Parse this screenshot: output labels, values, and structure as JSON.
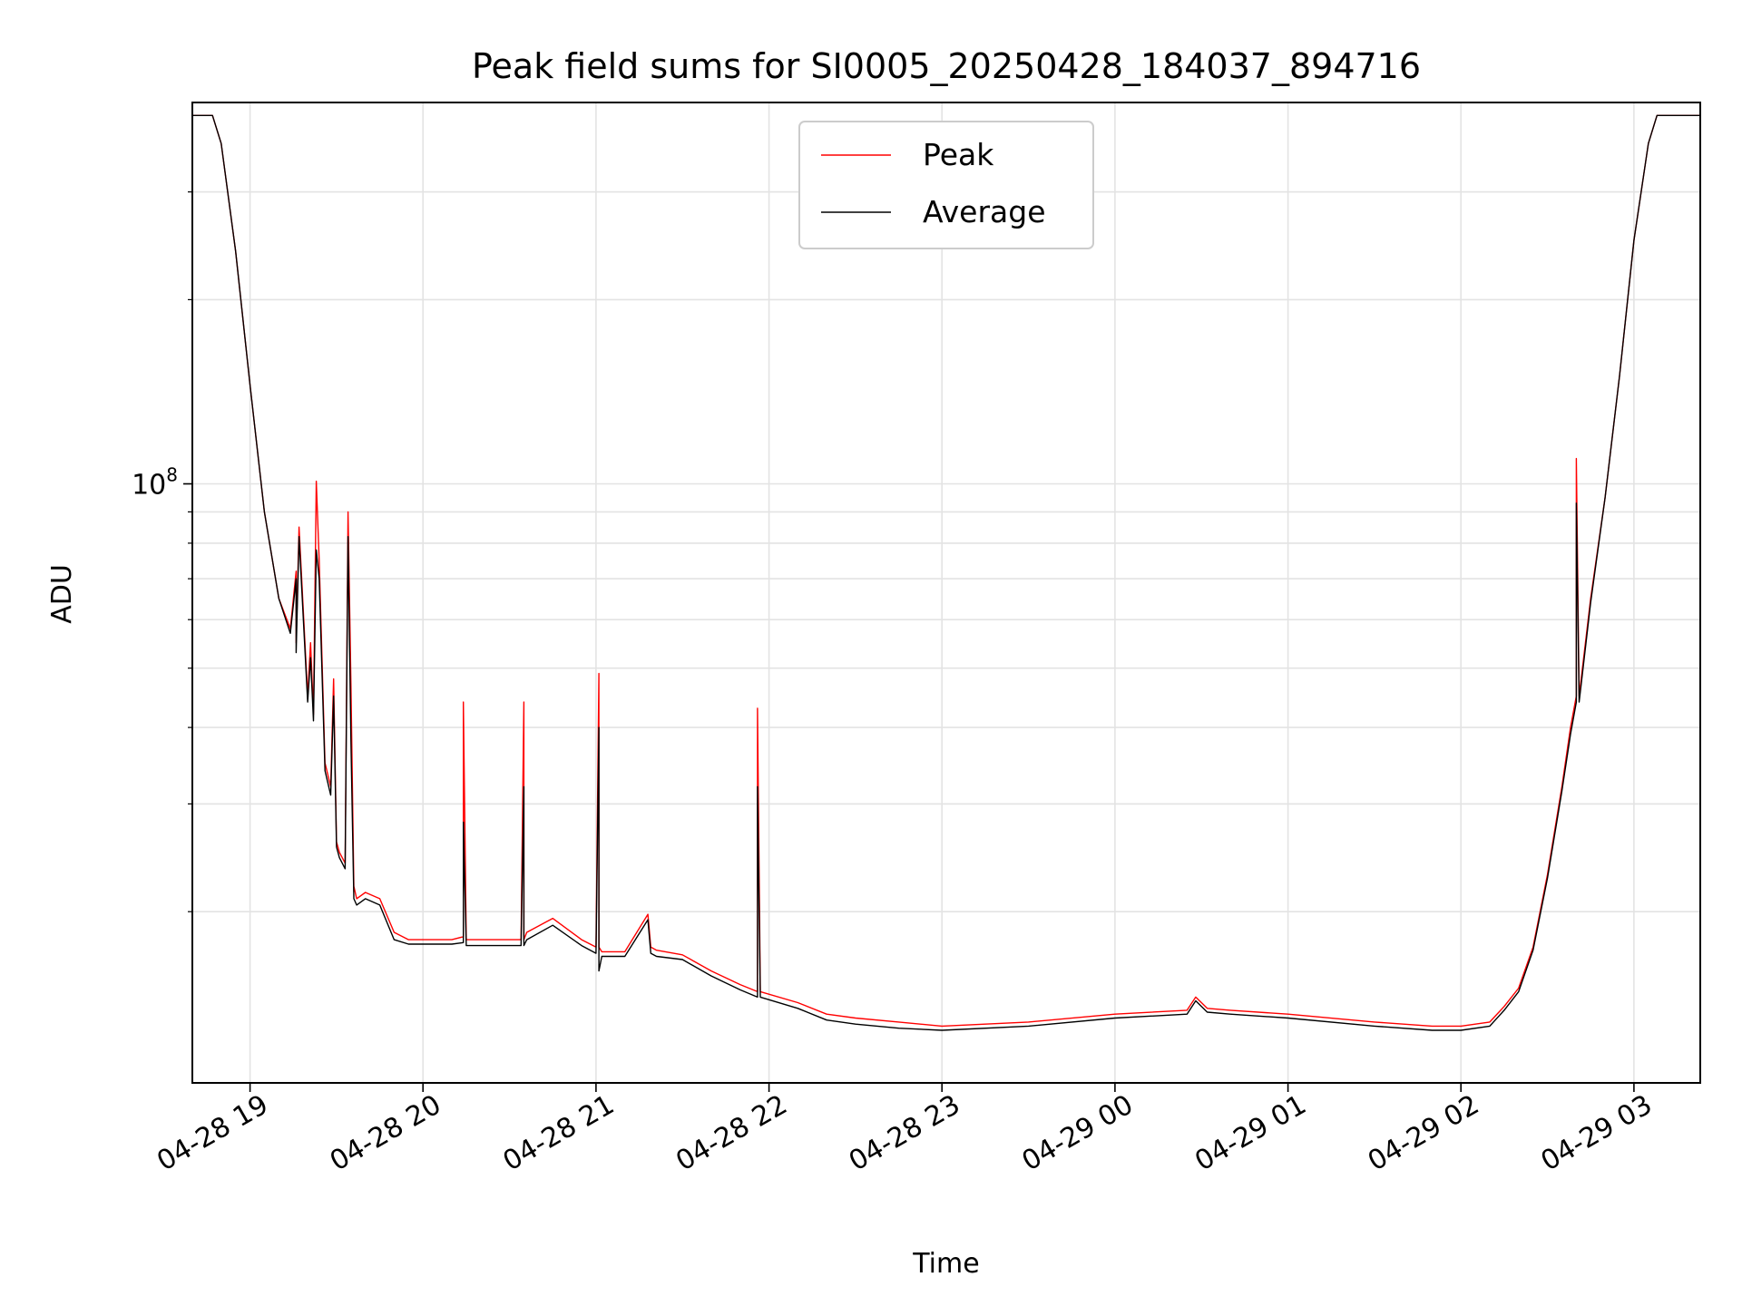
{
  "chart_data": {
    "type": "line",
    "title": "Peak field sums for SI0005_20250428_184037_894716",
    "xlabel": "Time",
    "ylabel": "ADU",
    "y_scale": "log",
    "ylim": [
      10500000,
      420000000
    ],
    "xlim": [
      "2025-04-28 18:40",
      "2025-04-29 03:23"
    ],
    "x_ticks": [
      "04-28 19",
      "04-28 20",
      "04-28 21",
      "04-28 22",
      "04-28 23",
      "04-29 00",
      "04-29 01",
      "04-29 02",
      "04-29 03"
    ],
    "y_tick_labels": [
      {
        "base": "10",
        "exp": "8",
        "value": 100000000
      }
    ],
    "y_minor_ticks": [
      20000000,
      30000000,
      40000000,
      50000000,
      60000000,
      70000000,
      80000000,
      90000000,
      200000000,
      300000000
    ],
    "grid": true,
    "legend_placement": "upper center",
    "colors": {
      "Peak": "#ff0000",
      "Average": "#000000"
    },
    "series": [
      {
        "name": "Peak",
        "x": [
          "2025-04-28 18:40",
          "2025-04-28 18:47",
          "2025-04-28 18:50",
          "2025-04-28 18:55",
          "2025-04-28 19:00",
          "2025-04-28 19:05",
          "2025-04-28 19:10",
          "2025-04-28 19:14",
          "2025-04-28 19:16",
          "2025-04-28 19:16",
          "2025-04-28 19:17",
          "2025-04-28 19:20",
          "2025-04-28 19:21",
          "2025-04-28 19:22",
          "2025-04-28 19:23",
          "2025-04-28 19:24",
          "2025-04-28 19:26",
          "2025-04-28 19:28",
          "2025-04-28 19:29",
          "2025-04-28 19:30",
          "2025-04-28 19:31",
          "2025-04-28 19:33",
          "2025-04-28 19:34",
          "2025-04-28 19:35",
          "2025-04-28 19:36",
          "2025-04-28 19:37",
          "2025-04-28 19:40",
          "2025-04-28 19:45",
          "2025-04-28 19:50",
          "2025-04-28 19:55",
          "2025-04-28 20:10",
          "2025-04-28 20:14",
          "2025-04-28 20:14",
          "2025-04-28 20:15",
          "2025-04-28 20:34",
          "2025-04-28 20:35",
          "2025-04-28 20:35",
          "2025-04-28 20:36",
          "2025-04-28 20:45",
          "2025-04-28 20:55",
          "2025-04-28 21:00",
          "2025-04-28 21:01",
          "2025-04-28 21:01",
          "2025-04-28 21:02",
          "2025-04-28 21:10",
          "2025-04-28 21:18",
          "2025-04-28 21:19",
          "2025-04-28 21:21",
          "2025-04-28 21:30",
          "2025-04-28 21:40",
          "2025-04-28 21:50",
          "2025-04-28 21:56",
          "2025-04-28 21:56",
          "2025-04-28 21:57",
          "2025-04-28 22:10",
          "2025-04-28 22:20",
          "2025-04-28 22:30",
          "2025-04-28 22:45",
          "2025-04-28 23:00",
          "2025-04-28 23:30",
          "2025-04-29 00:00",
          "2025-04-29 00:25",
          "2025-04-29 00:28",
          "2025-04-29 00:32",
          "2025-04-29 00:40",
          "2025-04-29 01:00",
          "2025-04-29 01:30",
          "2025-04-29 01:50",
          "2025-04-29 02:00",
          "2025-04-29 02:10",
          "2025-04-29 02:15",
          "2025-04-29 02:20",
          "2025-04-29 02:25",
          "2025-04-29 02:30",
          "2025-04-29 02:35",
          "2025-04-29 02:38",
          "2025-04-29 02:40",
          "2025-04-29 02:40",
          "2025-04-29 02:41",
          "2025-04-29 02:45",
          "2025-04-29 02:50",
          "2025-04-29 02:55",
          "2025-04-29 03:00",
          "2025-04-29 03:05",
          "2025-04-29 03:08",
          "2025-04-29 03:23"
        ],
        "values": [
          400000000,
          400000000,
          360000000,
          240000000,
          145000000,
          90000000,
          65000000,
          58000000,
          72000000,
          55000000,
          85000000,
          45000000,
          55000000,
          42000000,
          101000000,
          75000000,
          35000000,
          32000000,
          48000000,
          26000000,
          25000000,
          24000000,
          90000000,
          47000000,
          22000000,
          21000000,
          21500000,
          21000000,
          18500000,
          18000000,
          18000000,
          18200000,
          44000000,
          18000000,
          18000000,
          44000000,
          18000000,
          18500000,
          19500000,
          18000000,
          17500000,
          49000000,
          17500000,
          17200000,
          17200000,
          19800000,
          17500000,
          17300000,
          17000000,
          16000000,
          15200000,
          14800000,
          43000000,
          14800000,
          14200000,
          13600000,
          13400000,
          13200000,
          13000000,
          13200000,
          13600000,
          13800000,
          14500000,
          13900000,
          13800000,
          13600000,
          13200000,
          13000000,
          13000000,
          13200000,
          14000000,
          15000000,
          17500000,
          23000000,
          32000000,
          40000000,
          45000000,
          110000000,
          45000000,
          65000000,
          95000000,
          150000000,
          250000000,
          360000000,
          400000000,
          400000000
        ]
      },
      {
        "name": "Average",
        "x": [
          "2025-04-28 18:40",
          "2025-04-28 18:47",
          "2025-04-28 18:50",
          "2025-04-28 18:55",
          "2025-04-28 19:00",
          "2025-04-28 19:05",
          "2025-04-28 19:10",
          "2025-04-28 19:14",
          "2025-04-28 19:16",
          "2025-04-28 19:16",
          "2025-04-28 19:17",
          "2025-04-28 19:20",
          "2025-04-28 19:21",
          "2025-04-28 19:22",
          "2025-04-28 19:23",
          "2025-04-28 19:24",
          "2025-04-28 19:26",
          "2025-04-28 19:28",
          "2025-04-28 19:29",
          "2025-04-28 19:30",
          "2025-04-28 19:31",
          "2025-04-28 19:33",
          "2025-04-28 19:34",
          "2025-04-28 19:35",
          "2025-04-28 19:36",
          "2025-04-28 19:37",
          "2025-04-28 19:40",
          "2025-04-28 19:45",
          "2025-04-28 19:50",
          "2025-04-28 19:55",
          "2025-04-28 20:10",
          "2025-04-28 20:14",
          "2025-04-28 20:14",
          "2025-04-28 20:15",
          "2025-04-28 20:34",
          "2025-04-28 20:35",
          "2025-04-28 20:35",
          "2025-04-28 20:36",
          "2025-04-28 20:45",
          "2025-04-28 20:55",
          "2025-04-28 21:00",
          "2025-04-28 21:01",
          "2025-04-28 21:01",
          "2025-04-28 21:02",
          "2025-04-28 21:10",
          "2025-04-28 21:18",
          "2025-04-28 21:19",
          "2025-04-28 21:21",
          "2025-04-28 21:30",
          "2025-04-28 21:40",
          "2025-04-28 21:50",
          "2025-04-28 21:56",
          "2025-04-28 21:56",
          "2025-04-28 21:57",
          "2025-04-28 22:10",
          "2025-04-28 22:20",
          "2025-04-28 22:30",
          "2025-04-28 22:45",
          "2025-04-28 23:00",
          "2025-04-28 23:30",
          "2025-04-29 00:00",
          "2025-04-29 00:25",
          "2025-04-29 00:28",
          "2025-04-29 00:32",
          "2025-04-29 00:40",
          "2025-04-29 01:00",
          "2025-04-29 01:30",
          "2025-04-29 01:50",
          "2025-04-29 02:00",
          "2025-04-29 02:10",
          "2025-04-29 02:15",
          "2025-04-29 02:20",
          "2025-04-29 02:25",
          "2025-04-29 02:30",
          "2025-04-29 02:35",
          "2025-04-29 02:38",
          "2025-04-29 02:40",
          "2025-04-29 02:40",
          "2025-04-29 02:41",
          "2025-04-29 02:45",
          "2025-04-29 02:50",
          "2025-04-29 02:55",
          "2025-04-29 03:00",
          "2025-04-29 03:05",
          "2025-04-29 03:08",
          "2025-04-29 03:23"
        ],
        "values": [
          400000000,
          400000000,
          360000000,
          240000000,
          145000000,
          90000000,
          65000000,
          57000000,
          70000000,
          53000000,
          82000000,
          44000000,
          52000000,
          41000000,
          78000000,
          70000000,
          34000000,
          31000000,
          45000000,
          25500000,
          24500000,
          23500000,
          82000000,
          38000000,
          21000000,
          20500000,
          21000000,
          20500000,
          18000000,
          17700000,
          17700000,
          17800000,
          28000000,
          17600000,
          17600000,
          32000000,
          17600000,
          18000000,
          19000000,
          17600000,
          17100000,
          40000000,
          16000000,
          16900000,
          16900000,
          19400000,
          17100000,
          16900000,
          16700000,
          15700000,
          14900000,
          14500000,
          32000000,
          14500000,
          13900000,
          13300000,
          13100000,
          12900000,
          12800000,
          13000000,
          13400000,
          13600000,
          14300000,
          13700000,
          13600000,
          13400000,
          13000000,
          12800000,
          12800000,
          13000000,
          13800000,
          14800000,
          17300000,
          22700000,
          31500000,
          39000000,
          44000000,
          93000000,
          44000000,
          64000000,
          95000000,
          150000000,
          250000000,
          360000000,
          400000000,
          400000000
        ]
      }
    ]
  }
}
